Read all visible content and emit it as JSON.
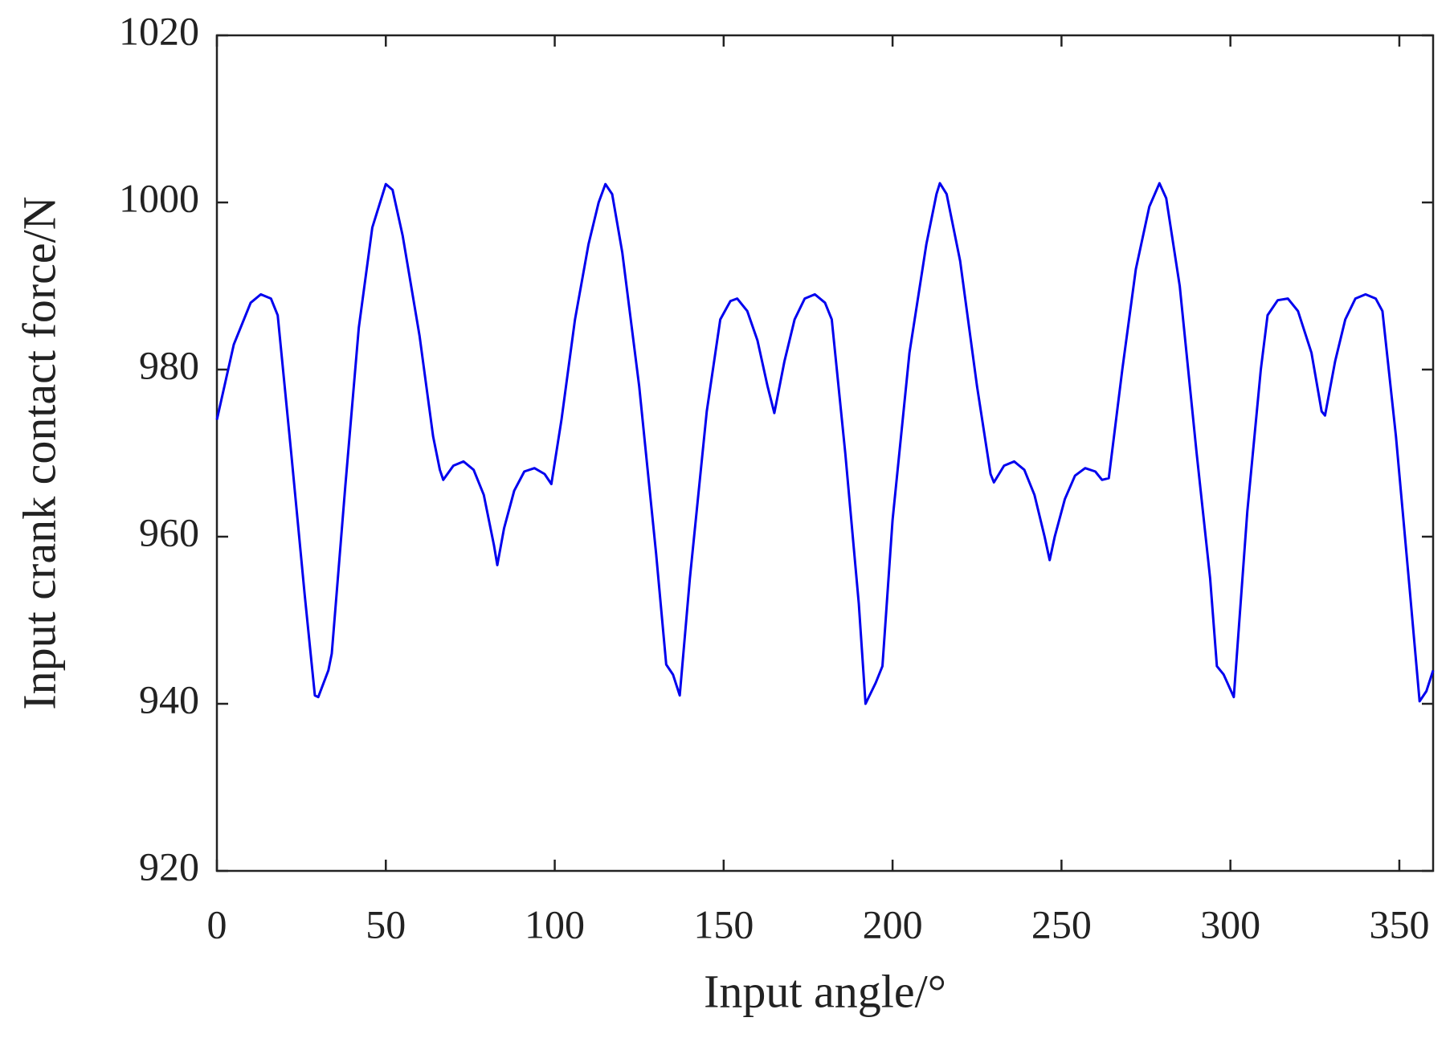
{
  "chart_data": {
    "type": "line",
    "xlabel": "Input angle/°",
    "ylabel": "Input crank contact force/N",
    "xlim": [
      0,
      360
    ],
    "xticks": [
      0,
      50,
      100,
      150,
      200,
      250,
      300,
      350
    ],
    "ylim": [
      920,
      1020
    ],
    "yticks": [
      920,
      940,
      960,
      980,
      1000,
      1020
    ],
    "grid": false,
    "series": [
      {
        "name": "Input crank contact force",
        "color": "#0000ee",
        "x": [
          0,
          5,
          10,
          13,
          16,
          18,
          22,
          26,
          29,
          30,
          33,
          34,
          38,
          42,
          46,
          50,
          52,
          55,
          60,
          64,
          66,
          67,
          70,
          73,
          76,
          79,
          82,
          83,
          85,
          88,
          91,
          94,
          97,
          99,
          102,
          106,
          110,
          113,
          115,
          117,
          120,
          125,
          130,
          133,
          135,
          137,
          140,
          145,
          149,
          152,
          154,
          157,
          160,
          163,
          165,
          168,
          171,
          174,
          177,
          180,
          182,
          186,
          190,
          192,
          195,
          197,
          200,
          205,
          210,
          213,
          214,
          216,
          220,
          225,
          229,
          230,
          233,
          236,
          239,
          242,
          245,
          246.5,
          248,
          251,
          254,
          257,
          260,
          262,
          264,
          268,
          272,
          276,
          279,
          281,
          285,
          290,
          294,
          296,
          298,
          301,
          305,
          309,
          311,
          314,
          317,
          320,
          324,
          327,
          328,
          331,
          334,
          337,
          340,
          343,
          345,
          349,
          353,
          356,
          358,
          360
        ],
        "values": [
          974,
          983,
          988,
          989,
          988.5,
          986.5,
          970,
          953,
          941,
          940.8,
          944,
          946,
          966,
          985,
          997,
          1002.2,
          1001.5,
          996,
          984,
          972,
          968,
          966.8,
          968.5,
          969,
          968,
          965,
          959,
          956.6,
          961,
          965.5,
          967.8,
          968.2,
          967.5,
          966.3,
          974,
          986,
          995,
          1000,
          1002.2,
          1001,
          994,
          978,
          958,
          944.7,
          943.5,
          941,
          955,
          975,
          986,
          988.2,
          988.5,
          987,
          983.5,
          978,
          974.8,
          981,
          986,
          988.5,
          989,
          988,
          986,
          970,
          952,
          940,
          942.5,
          944.5,
          962,
          982,
          995,
          1001,
          1002.3,
          1001,
          993,
          978,
          967.5,
          966.5,
          968.5,
          969,
          968,
          965,
          960,
          957.2,
          960,
          964.5,
          967.3,
          968.2,
          967.8,
          966.8,
          967,
          980,
          992,
          999.5,
          1002.3,
          1000.5,
          990,
          970,
          955,
          944.5,
          943.5,
          940.8,
          963,
          980,
          986.5,
          988.3,
          988.5,
          987,
          982,
          975,
          974.5,
          981,
          986,
          988.5,
          989,
          988.5,
          987,
          972,
          954,
          940.3,
          941.5,
          944
        ]
      }
    ]
  }
}
